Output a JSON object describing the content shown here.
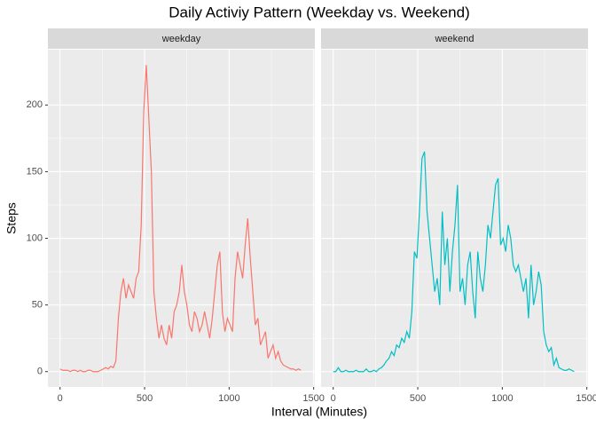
{
  "title": "Daily Activiy Pattern (Weekday vs. Weekend)",
  "xlabel": "Interval (Minutes)",
  "ylabel": "Steps",
  "chart_data": [
    {
      "type": "line",
      "facet": "weekday",
      "color": "#F8766D",
      "xlim": [
        -72,
        1507
      ],
      "xticks": [
        0,
        500,
        1000,
        1500
      ],
      "ylim": [
        -11.5,
        241.5
      ],
      "yticks": [
        0,
        50,
        100,
        150,
        200
      ],
      "grid": true,
      "x": [
        0,
        15,
        30,
        45,
        60,
        75,
        90,
        105,
        120,
        135,
        150,
        165,
        180,
        195,
        210,
        225,
        240,
        255,
        270,
        285,
        300,
        315,
        330,
        345,
        360,
        375,
        390,
        405,
        420,
        435,
        450,
        465,
        480,
        495,
        510,
        525,
        540,
        555,
        570,
        585,
        600,
        615,
        630,
        645,
        660,
        675,
        690,
        705,
        720,
        735,
        750,
        765,
        780,
        795,
        810,
        825,
        840,
        855,
        870,
        885,
        900,
        915,
        930,
        945,
        960,
        975,
        990,
        1005,
        1020,
        1035,
        1050,
        1065,
        1080,
        1095,
        1110,
        1125,
        1140,
        1155,
        1170,
        1185,
        1200,
        1215,
        1230,
        1245,
        1260,
        1275,
        1290,
        1305,
        1320,
        1335,
        1350,
        1365,
        1380,
        1395,
        1410,
        1425
      ],
      "values": [
        2,
        1,
        1,
        1,
        0,
        1,
        1,
        0,
        1,
        0,
        0,
        1,
        1,
        0,
        0,
        0,
        1,
        2,
        3,
        2,
        4,
        3,
        8,
        40,
        60,
        70,
        55,
        65,
        60,
        55,
        70,
        75,
        110,
        195,
        230,
        190,
        150,
        60,
        40,
        25,
        35,
        25,
        20,
        35,
        25,
        45,
        50,
        60,
        80,
        60,
        50,
        35,
        30,
        45,
        40,
        30,
        35,
        45,
        35,
        25,
        40,
        60,
        80,
        90,
        45,
        30,
        40,
        35,
        30,
        70,
        90,
        80,
        70,
        95,
        115,
        85,
        60,
        35,
        40,
        20,
        25,
        30,
        10,
        15,
        20,
        10,
        15,
        8,
        5,
        4,
        3,
        2,
        2,
        1,
        2,
        1
      ]
    },
    {
      "type": "line",
      "facet": "weekend",
      "color": "#00BFC4",
      "xlim": [
        -72,
        1507
      ],
      "xticks": [
        0,
        500,
        1000,
        1500
      ],
      "ylim": [
        -11.5,
        241.5
      ],
      "yticks": [
        0,
        50,
        100,
        150,
        200
      ],
      "grid": true,
      "x": [
        0,
        15,
        30,
        45,
        60,
        75,
        90,
        105,
        120,
        135,
        150,
        165,
        180,
        195,
        210,
        225,
        240,
        255,
        270,
        285,
        300,
        315,
        330,
        345,
        360,
        375,
        390,
        405,
        420,
        435,
        450,
        465,
        480,
        495,
        510,
        525,
        540,
        555,
        570,
        585,
        600,
        615,
        630,
        645,
        660,
        675,
        690,
        705,
        720,
        735,
        750,
        765,
        780,
        795,
        810,
        825,
        840,
        855,
        870,
        885,
        900,
        915,
        930,
        945,
        960,
        975,
        990,
        1005,
        1020,
        1035,
        1050,
        1065,
        1080,
        1095,
        1110,
        1125,
        1140,
        1155,
        1170,
        1185,
        1200,
        1215,
        1230,
        1245,
        1260,
        1275,
        1290,
        1305,
        1320,
        1335,
        1350,
        1365,
        1380,
        1395,
        1410,
        1425
      ],
      "values": [
        0,
        0,
        3,
        0,
        0,
        1,
        0,
        0,
        0,
        1,
        0,
        0,
        0,
        2,
        0,
        0,
        1,
        0,
        2,
        3,
        5,
        8,
        10,
        15,
        12,
        20,
        18,
        25,
        22,
        30,
        25,
        45,
        90,
        85,
        120,
        160,
        165,
        120,
        100,
        80,
        60,
        70,
        50,
        120,
        80,
        100,
        60,
        90,
        110,
        140,
        60,
        70,
        50,
        80,
        90,
        60,
        40,
        90,
        70,
        60,
        80,
        110,
        100,
        120,
        140,
        145,
        95,
        100,
        90,
        110,
        100,
        80,
        75,
        80,
        70,
        60,
        70,
        40,
        80,
        50,
        60,
        75,
        65,
        30,
        20,
        15,
        18,
        5,
        10,
        3,
        2,
        1,
        1,
        2,
        1,
        0
      ]
    }
  ]
}
